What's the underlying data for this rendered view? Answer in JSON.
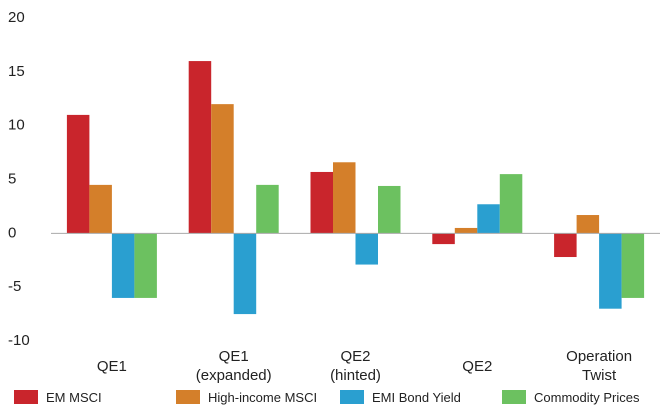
{
  "chart_data": {
    "type": "bar",
    "categories": [
      "QE1",
      "QE1\n(expanded)",
      "QE2\n(hinted)",
      "QE2",
      "Operation\nTwist"
    ],
    "series": [
      {
        "name": "EM MSCI",
        "color": "#c9252c",
        "values": [
          11,
          16,
          5.7,
          -1,
          -2.2
        ]
      },
      {
        "name": "High-income MSCI",
        "color": "#d47f2a",
        "values": [
          4.5,
          12,
          6.6,
          0.5,
          1.7
        ]
      },
      {
        "name": "EMI Bond Yield",
        "color": "#2a9fd0",
        "values": [
          -6,
          -7.5,
          -2.9,
          2.7,
          -7
        ]
      },
      {
        "name": "Commodity Prices",
        "color": "#6cc160",
        "values": [
          -6,
          4.5,
          4.4,
          5.5,
          -6
        ]
      }
    ],
    "ylim": [
      -10,
      20
    ],
    "yticks": [
      -10,
      -5,
      0,
      5,
      10,
      15,
      20
    ],
    "grid": false,
    "legend": "bottom"
  }
}
